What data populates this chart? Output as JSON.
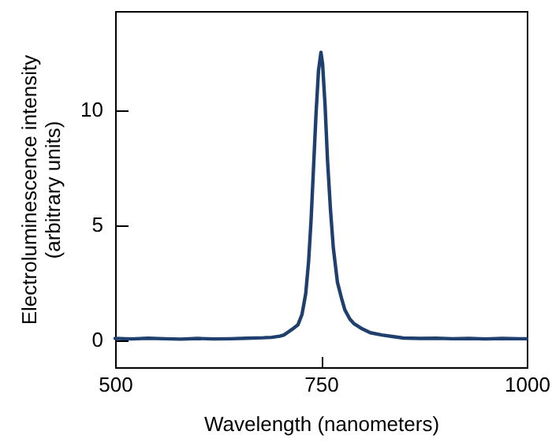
{
  "chart_data": {
    "type": "line",
    "xlabel": "Wavelength (nanometers)",
    "ylabel": "Electroluminescence intensity\n(arbitrary units)",
    "xlim": [
      500,
      1000
    ],
    "ylim": [
      -1.2,
      14.3
    ],
    "xticks": [
      500,
      750,
      1000
    ],
    "yticks": [
      0,
      5,
      10
    ],
    "grid": false,
    "marker": "none",
    "line_style": "solid",
    "series": [
      {
        "color": "#1f3f6e",
        "x": [
          500,
          520,
          540,
          560,
          580,
          600,
          620,
          640,
          660,
          680,
          690,
          700,
          705,
          709,
          715,
          722,
          727,
          731.5,
          735,
          738,
          741,
          744,
          747,
          750,
          752,
          755,
          758,
          761.5,
          765,
          770,
          775,
          779,
          785,
          790,
          798.6,
          810,
          824,
          840,
          850,
          870,
          890,
          910,
          930,
          950,
          970,
          990,
          1000
        ],
        "values": [
          0.05,
          0.03,
          0.06,
          0.04,
          0.02,
          0.05,
          0.03,
          0.04,
          0.06,
          0.08,
          0.1,
          0.15,
          0.2,
          0.3,
          0.45,
          0.64,
          1.1,
          2.0,
          3.4,
          5.2,
          7.5,
          9.8,
          11.7,
          12.5,
          12.0,
          10.2,
          7.8,
          5.7,
          4.0,
          2.5,
          1.8,
          1.3,
          0.9,
          0.7,
          0.5,
          0.3,
          0.2,
          0.12,
          0.07,
          0.05,
          0.06,
          0.04,
          0.05,
          0.03,
          0.05,
          0.04,
          0.04
        ]
      }
    ]
  }
}
